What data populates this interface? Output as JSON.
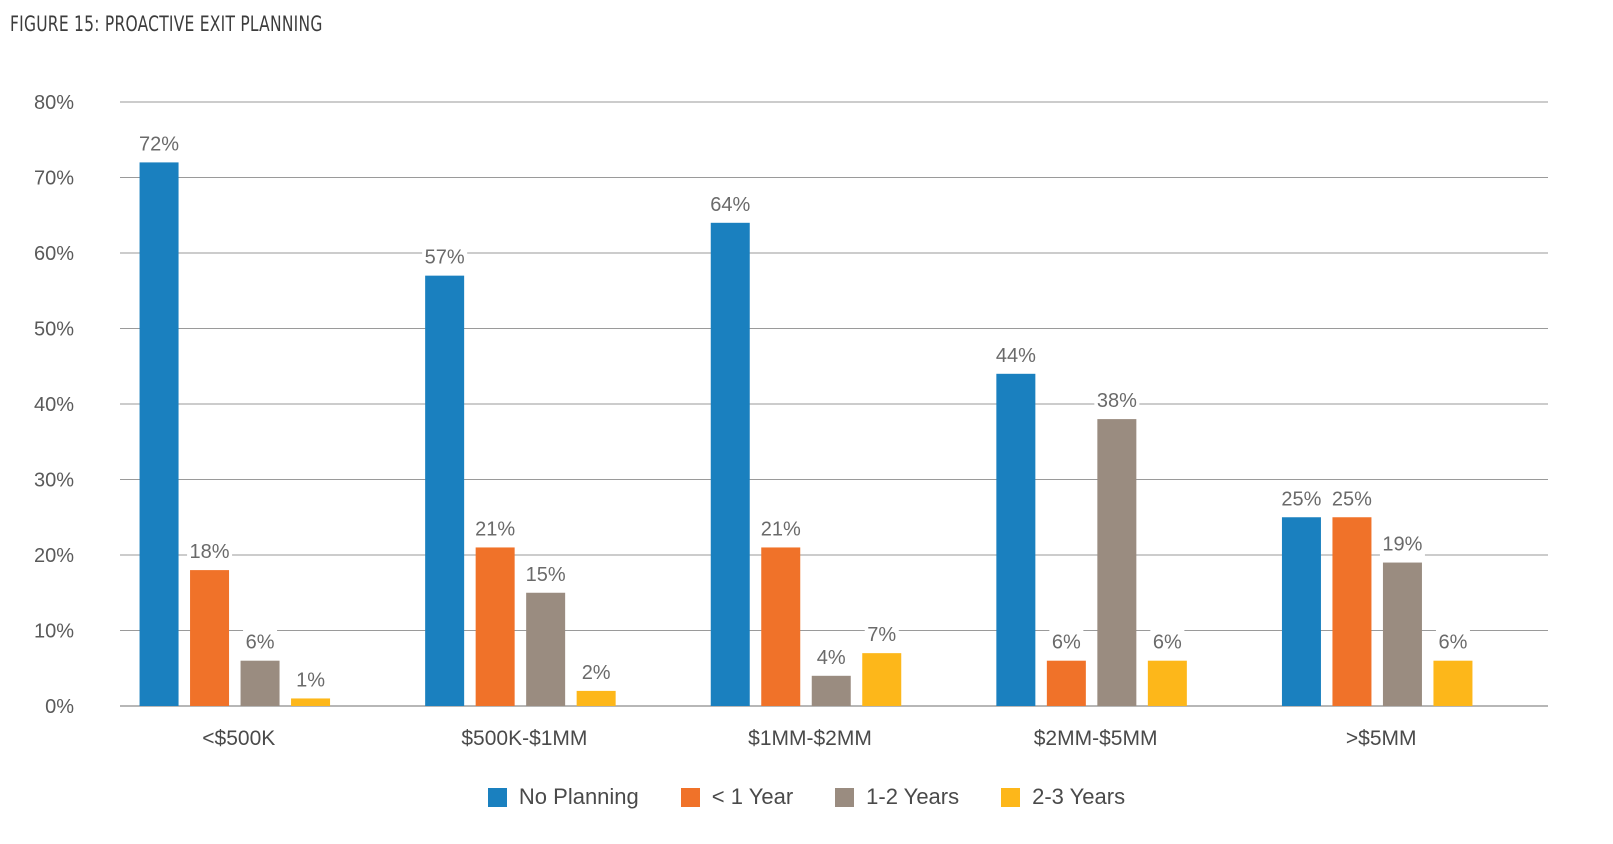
{
  "figure_title": "FIGURE 15: PROACTIVE EXIT PLANNING",
  "chart_data": {
    "type": "bar",
    "title": "FIGURE 15: PROACTIVE EXIT PLANNING",
    "xlabel": "",
    "ylabel": "",
    "ylim": [
      0,
      80
    ],
    "y_ticks": [
      0,
      10,
      20,
      30,
      40,
      50,
      60,
      70,
      80
    ],
    "y_tick_labels": [
      "0%",
      "10%",
      "20%",
      "30%",
      "40%",
      "50%",
      "60%",
      "70%",
      "80%"
    ],
    "categories": [
      "<$500K",
      "$500K-$1MM",
      "$1MM-$2MM",
      "$2MM-$5MM",
      ">$5MM"
    ],
    "series": [
      {
        "name": "No Planning",
        "color": "#1a80bf",
        "values": [
          72,
          57,
          64,
          44,
          25
        ],
        "labels": [
          "72%",
          "57%",
          "64%",
          "44%",
          "25%"
        ]
      },
      {
        "name": "< 1 Year",
        "color": "#f07229",
        "values": [
          18,
          21,
          21,
          6,
          25
        ],
        "labels": [
          "18%",
          "21%",
          "21%",
          "6%",
          "25%"
        ]
      },
      {
        "name": "1-2 Years",
        "color": "#9a8c80",
        "values": [
          6,
          15,
          4,
          38,
          19
        ],
        "labels": [
          "6%",
          "15%",
          "4%",
          "38%",
          "19%"
        ]
      },
      {
        "name": "2-3 Years",
        "color": "#fdb71a",
        "values": [
          1,
          2,
          7,
          6,
          6
        ],
        "labels": [
          "1%",
          "2%",
          "7%",
          "6%",
          "6%"
        ]
      }
    ],
    "grid": true,
    "legend_position": "bottom-center"
  }
}
